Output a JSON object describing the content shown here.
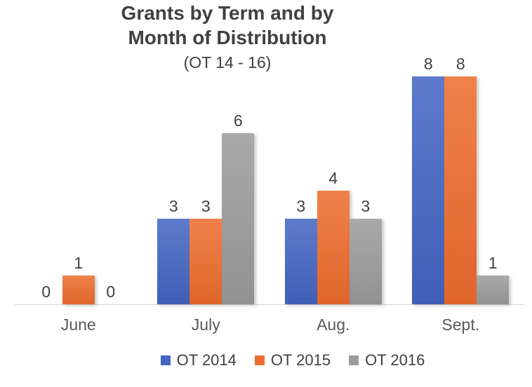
{
  "title": {
    "line1": "Grants by Term and by",
    "line2": "Month of Distribution",
    "subtitle": "(OT 14 - 16)"
  },
  "chart_data": {
    "type": "bar",
    "title": "Grants by Term and by Month of Distribution",
    "subtitle": "(OT 14 - 16)",
    "categories": [
      "June",
      "July",
      "Aug.",
      "Sept."
    ],
    "series": [
      {
        "name": "OT 2014",
        "color": "#4365C2",
        "values": [
          0,
          3,
          3,
          8
        ]
      },
      {
        "name": "OT 2015",
        "color": "#ED6C2D",
        "values": [
          1,
          3,
          4,
          8
        ]
      },
      {
        "name": "OT 2016",
        "color": "#9B9B9B",
        "values": [
          0,
          6,
          3,
          1
        ]
      }
    ],
    "xlabel": "",
    "ylabel": "",
    "ylim": [
      0,
      8
    ],
    "grid": false,
    "data_labels": true,
    "legend_position": "bottom"
  },
  "colors": {
    "title_text": "#404040",
    "value_label_text": "#404040",
    "category_label_text": "#595959",
    "axis_line": "#D6D6D6",
    "background": "#FFFFFF"
  }
}
